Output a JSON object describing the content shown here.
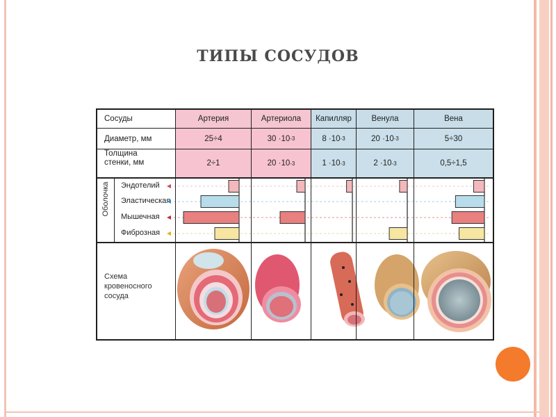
{
  "slide": {
    "title": "ТИПЫ СОСУДОВ"
  },
  "table": {
    "corner": "Сосуды",
    "columns": [
      "Артерия",
      "Артериола",
      "Капилляр",
      "Венула",
      "Вена"
    ],
    "diameter": {
      "label": "Диаметр, мм",
      "values": [
        {
          "base": "25÷4",
          "exp": ""
        },
        {
          "base": "30 ·10",
          "exp": "-3"
        },
        {
          "base": "8 ·10",
          "exp": "-3"
        },
        {
          "base": "20 ·10",
          "exp": "-3"
        },
        {
          "base": "5÷30",
          "exp": ""
        }
      ]
    },
    "thickness": {
      "label_line1": "Толщина",
      "label_line2": "стенки, мм",
      "values": [
        {
          "base": "2÷1",
          "exp": ""
        },
        {
          "base": "20 ·10",
          "exp": "-3"
        },
        {
          "base": "1 ·10",
          "exp": "-3"
        },
        {
          "base": "2 ·10",
          "exp": "-3"
        },
        {
          "base": "0,5÷1,5",
          "exp": ""
        }
      ]
    },
    "shell": {
      "label": "Оболочка",
      "layers": [
        {
          "name": "Эндотелий",
          "color": "#e8a0a6",
          "fill": "#f2b8bc",
          "arrow": "#c0505a"
        },
        {
          "name": "Эластическая",
          "color": "#6ab0cc",
          "fill": "#b8dcea",
          "arrow": "#3a90c0"
        },
        {
          "name": "Мышечная",
          "color": "#d84a4a",
          "fill": "#e88080",
          "arrow": "#c03030"
        },
        {
          "name": "Фиброзная",
          "color": "#d8c050",
          "fill": "#f6e6a2",
          "arrow": "#e0b020"
        }
      ],
      "relative_widths": [
        [
          0.15,
          0.55,
          0.8,
          0.35
        ],
        [
          0.15,
          0,
          0.45,
          0
        ],
        [
          0.15,
          0,
          0,
          0
        ],
        [
          0.15,
          0,
          0,
          0.35
        ],
        [
          0.15,
          0.4,
          0.45,
          0.35
        ]
      ]
    },
    "scheme": {
      "label_lines": [
        "Схема",
        "кровеносного",
        "сосуда"
      ]
    }
  }
}
